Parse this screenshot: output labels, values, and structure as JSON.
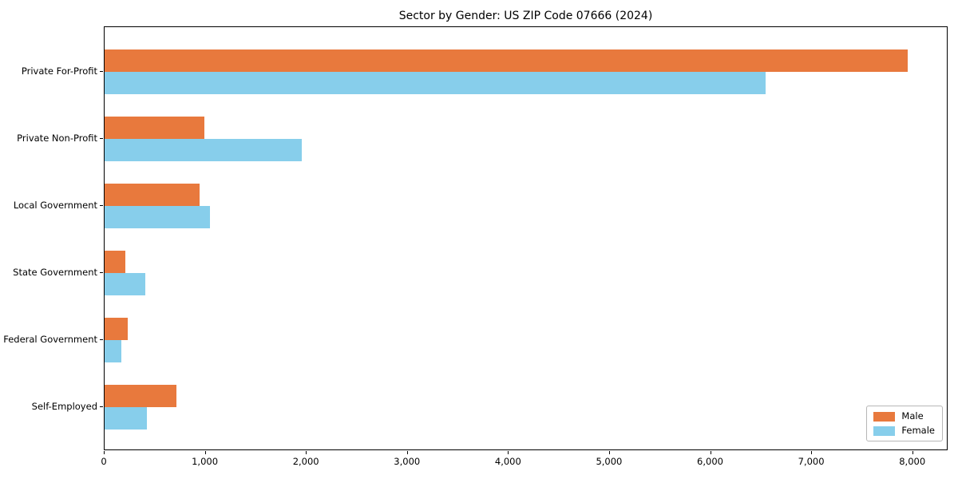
{
  "chart_data": {
    "type": "bar",
    "orientation": "horizontal",
    "title": "Sector by Gender: US ZIP Code 07666 (2024)",
    "xlabel": "",
    "ylabel": "",
    "categories": [
      "Private For-Profit",
      "Private Non-Profit",
      "Local Government",
      "State Government",
      "Federal Government",
      "Self-Employed"
    ],
    "series": [
      {
        "name": "Male",
        "color": "#e8793d",
        "values": [
          7950,
          985,
          940,
          205,
          230,
          710
        ]
      },
      {
        "name": "Female",
        "color": "#87ceeb",
        "values": [
          6540,
          1950,
          1045,
          400,
          165,
          420
        ]
      }
    ],
    "xlim": [
      0,
      8350
    ],
    "x_ticks": [
      {
        "value": 0,
        "label": "0"
      },
      {
        "value": 1000,
        "label": "1,000"
      },
      {
        "value": 2000,
        "label": "2,000"
      },
      {
        "value": 3000,
        "label": "3,000"
      },
      {
        "value": 4000,
        "label": "4,000"
      },
      {
        "value": 5000,
        "label": "5,000"
      },
      {
        "value": 6000,
        "label": "6,000"
      },
      {
        "value": 7000,
        "label": "7,000"
      },
      {
        "value": 8000,
        "label": "8,000"
      }
    ],
    "grid": false,
    "legend_position": "lower right"
  }
}
